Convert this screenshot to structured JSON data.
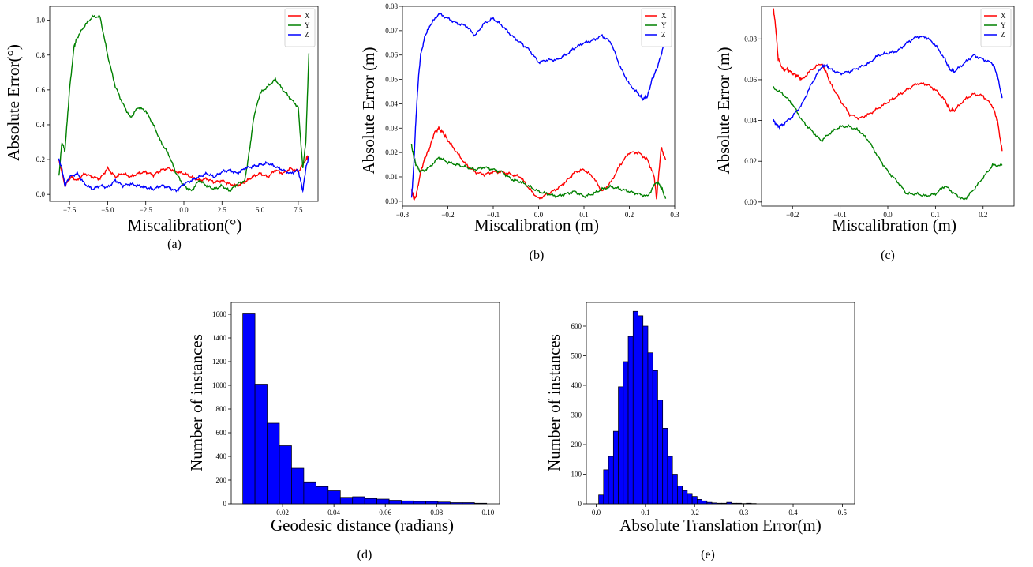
{
  "chart_data": [
    {
      "id": "a",
      "type": "line",
      "caption": "(a)",
      "xlabel": "Miscalibration(°)",
      "ylabel": "Absolute Error(°)",
      "xlim": [
        -8.8,
        8.8
      ],
      "ylim": [
        -0.04,
        1.08
      ],
      "xticks": [
        -7.5,
        -5.0,
        -2.5,
        0.0,
        2.5,
        5.0,
        7.5
      ],
      "xtick_labels": [
        "−7.5",
        "−5.0",
        "−2.5",
        "0.0",
        "2.5",
        "5.0",
        "7.5"
      ],
      "yticks": [
        0.0,
        0.2,
        0.4,
        0.6,
        0.8,
        1.0
      ],
      "ytick_labels": [
        "0.0",
        "0.2",
        "0.4",
        "0.6",
        "0.8",
        "1.0"
      ],
      "legend_position": "top-right",
      "series": [
        {
          "name": "X",
          "color": "#ff0000",
          "x": [
            -8.2,
            -7.8,
            -7.4,
            -7.0,
            -6.5,
            -6.0,
            -5.5,
            -5.0,
            -4.5,
            -4.0,
            -3.5,
            -3.0,
            -2.5,
            -2.0,
            -1.5,
            -1.0,
            -0.5,
            0.0,
            0.5,
            1.0,
            1.5,
            2.0,
            2.5,
            3.0,
            3.5,
            4.0,
            4.5,
            5.0,
            5.5,
            6.0,
            6.5,
            7.0,
            7.5,
            8.0,
            8.2
          ],
          "y": [
            0.2,
            0.05,
            0.1,
            0.08,
            0.12,
            0.1,
            0.09,
            0.15,
            0.1,
            0.12,
            0.1,
            0.12,
            0.13,
            0.11,
            0.14,
            0.15,
            0.13,
            0.12,
            0.1,
            0.08,
            0.09,
            0.07,
            0.08,
            0.06,
            0.05,
            0.07,
            0.1,
            0.12,
            0.1,
            0.14,
            0.12,
            0.15,
            0.13,
            0.2,
            0.22
          ]
        },
        {
          "name": "Y",
          "color": "#008000",
          "x": [
            -8.2,
            -8.0,
            -7.8,
            -7.5,
            -7.2,
            -7.0,
            -6.5,
            -6.0,
            -5.5,
            -5.0,
            -4.5,
            -4.0,
            -3.5,
            -3.0,
            -2.5,
            -2.0,
            -1.5,
            -1.0,
            -0.5,
            0.0,
            0.5,
            1.0,
            1.5,
            2.0,
            2.5,
            3.0,
            3.5,
            4.0,
            4.3,
            4.6,
            5.0,
            5.5,
            6.0,
            6.5,
            7.0,
            7.5,
            7.8,
            8.0,
            8.2
          ],
          "y": [
            0.1,
            0.3,
            0.25,
            0.6,
            0.85,
            0.9,
            0.97,
            1.02,
            1.02,
            0.8,
            0.62,
            0.52,
            0.44,
            0.5,
            0.48,
            0.4,
            0.3,
            0.23,
            0.12,
            0.05,
            0.02,
            0.08,
            0.05,
            0.03,
            0.05,
            0.02,
            0.06,
            0.08,
            0.25,
            0.45,
            0.58,
            0.62,
            0.66,
            0.6,
            0.55,
            0.5,
            0.15,
            0.3,
            0.81
          ]
        },
        {
          "name": "Z",
          "color": "#0000ff",
          "x": [
            -8.2,
            -8.0,
            -7.8,
            -7.5,
            -7.0,
            -6.5,
            -6.0,
            -5.5,
            -5.0,
            -4.5,
            -4.0,
            -3.5,
            -3.0,
            -2.5,
            -2.0,
            -1.5,
            -1.0,
            -0.5,
            0.0,
            0.5,
            1.0,
            1.5,
            2.0,
            2.5,
            3.0,
            3.5,
            4.0,
            4.5,
            5.0,
            5.5,
            6.0,
            6.5,
            7.0,
            7.5,
            7.8,
            8.0,
            8.2
          ],
          "y": [
            0.2,
            0.15,
            0.05,
            0.1,
            0.12,
            0.06,
            0.03,
            0.05,
            0.04,
            0.08,
            0.05,
            0.06,
            0.05,
            0.04,
            0.03,
            0.05,
            0.04,
            0.02,
            0.06,
            0.08,
            0.1,
            0.12,
            0.1,
            0.13,
            0.14,
            0.12,
            0.15,
            0.16,
            0.17,
            0.18,
            0.16,
            0.14,
            0.12,
            0.14,
            0.02,
            0.15,
            0.22
          ]
        }
      ]
    },
    {
      "id": "b",
      "type": "line",
      "caption": "(b)",
      "xlabel": "Miscalibration (m)",
      "ylabel": "Absolute Error (m)",
      "xlim": [
        -0.3,
        0.3
      ],
      "ylim": [
        -0.002,
        0.08
      ],
      "xticks": [
        -0.3,
        -0.2,
        -0.1,
        0.0,
        0.1,
        0.2,
        0.3
      ],
      "xtick_labels": [
        "−0.3",
        "−0.2",
        "−0.1",
        "0.0",
        "0.1",
        "0.2",
        "0.3"
      ],
      "yticks": [
        0.0,
        0.01,
        0.02,
        0.03,
        0.04,
        0.05,
        0.06,
        0.07,
        0.08
      ],
      "ytick_labels": [
        "0.00",
        "0.01",
        "0.02",
        "0.03",
        "0.04",
        "0.05",
        "0.06",
        "0.07",
        "0.08"
      ],
      "legend_position": "top-right",
      "series": [
        {
          "name": "X",
          "color": "#ff0000",
          "x": [
            -0.28,
            -0.275,
            -0.27,
            -0.26,
            -0.25,
            -0.24,
            -0.23,
            -0.22,
            -0.21,
            -0.2,
            -0.18,
            -0.16,
            -0.14,
            -0.12,
            -0.1,
            -0.08,
            -0.06,
            -0.04,
            -0.02,
            0.0,
            0.02,
            0.04,
            0.06,
            0.08,
            0.1,
            0.12,
            0.14,
            0.16,
            0.18,
            0.2,
            0.22,
            0.24,
            0.255,
            0.26,
            0.27,
            0.28
          ],
          "y": [
            0.005,
            0.001,
            0.002,
            0.012,
            0.018,
            0.022,
            0.028,
            0.03,
            0.028,
            0.025,
            0.02,
            0.015,
            0.012,
            0.011,
            0.012,
            0.012,
            0.011,
            0.01,
            0.005,
            0.001,
            0.003,
            0.005,
            0.008,
            0.012,
            0.013,
            0.01,
            0.004,
            0.008,
            0.015,
            0.02,
            0.02,
            0.017,
            0.01,
            0.001,
            0.022,
            0.017
          ]
        },
        {
          "name": "Y",
          "color": "#008000",
          "x": [
            -0.28,
            -0.275,
            -0.27,
            -0.26,
            -0.24,
            -0.22,
            -0.2,
            -0.18,
            -0.16,
            -0.14,
            -0.12,
            -0.1,
            -0.08,
            -0.06,
            -0.04,
            -0.02,
            0.0,
            0.02,
            0.04,
            0.06,
            0.08,
            0.1,
            0.12,
            0.14,
            0.16,
            0.18,
            0.2,
            0.22,
            0.24,
            0.26,
            0.27,
            0.28
          ],
          "y": [
            0.023,
            0.018,
            0.015,
            0.012,
            0.014,
            0.018,
            0.016,
            0.015,
            0.014,
            0.013,
            0.014,
            0.013,
            0.012,
            0.009,
            0.008,
            0.006,
            0.004,
            0.003,
            0.002,
            0.003,
            0.004,
            0.002,
            0.003,
            0.005,
            0.006,
            0.005,
            0.004,
            0.003,
            0.002,
            0.008,
            0.006,
            0.001
          ]
        },
        {
          "name": "Z",
          "color": "#0000ff",
          "x": [
            -0.28,
            -0.275,
            -0.27,
            -0.265,
            -0.26,
            -0.25,
            -0.24,
            -0.22,
            -0.2,
            -0.18,
            -0.16,
            -0.14,
            -0.12,
            -0.1,
            -0.08,
            -0.06,
            -0.04,
            -0.02,
            0.0,
            0.02,
            0.04,
            0.06,
            0.08,
            0.1,
            0.12,
            0.14,
            0.16,
            0.18,
            0.2,
            0.22,
            0.23,
            0.24,
            0.25,
            0.26,
            0.27,
            0.28
          ],
          "y": [
            0.001,
            0.015,
            0.035,
            0.05,
            0.06,
            0.068,
            0.072,
            0.077,
            0.075,
            0.073,
            0.072,
            0.068,
            0.073,
            0.075,
            0.072,
            0.068,
            0.065,
            0.062,
            0.057,
            0.058,
            0.058,
            0.06,
            0.063,
            0.065,
            0.066,
            0.068,
            0.065,
            0.055,
            0.048,
            0.044,
            0.042,
            0.043,
            0.05,
            0.054,
            0.06,
            0.067
          ]
        }
      ]
    },
    {
      "id": "c",
      "type": "line",
      "caption": "(c)",
      "xlabel": "Miscalibration (m)",
      "ylabel": "Absolute Error (m)",
      "xlim": [
        -0.265,
        0.265
      ],
      "ylim": [
        -0.002,
        0.096
      ],
      "xticks": [
        -0.2,
        -0.1,
        0.0,
        0.1,
        0.2
      ],
      "xtick_labels": [
        "−0.2",
        "−0.1",
        "0.0",
        "0.1",
        "0.2"
      ],
      "yticks": [
        0.0,
        0.02,
        0.04,
        0.06,
        0.08
      ],
      "ytick_labels": [
        "0.00",
        "0.02",
        "0.04",
        "0.06",
        "0.08"
      ],
      "legend_position": "top-right",
      "series": [
        {
          "name": "X",
          "color": "#ff0000",
          "x": [
            -0.24,
            -0.235,
            -0.23,
            -0.22,
            -0.21,
            -0.2,
            -0.19,
            -0.18,
            -0.16,
            -0.14,
            -0.13,
            -0.12,
            -0.1,
            -0.08,
            -0.06,
            -0.04,
            -0.02,
            0.0,
            0.02,
            0.04,
            0.06,
            0.08,
            0.1,
            0.12,
            0.13,
            0.14,
            0.16,
            0.18,
            0.2,
            0.22,
            0.23,
            0.24
          ],
          "y": [
            0.095,
            0.085,
            0.07,
            0.065,
            0.065,
            0.063,
            0.062,
            0.06,
            0.065,
            0.068,
            0.064,
            0.058,
            0.05,
            0.043,
            0.041,
            0.043,
            0.046,
            0.049,
            0.052,
            0.055,
            0.058,
            0.058,
            0.055,
            0.05,
            0.045,
            0.045,
            0.05,
            0.053,
            0.052,
            0.047,
            0.04,
            0.025
          ]
        },
        {
          "name": "Y",
          "color": "#008000",
          "x": [
            -0.24,
            -0.22,
            -0.2,
            -0.18,
            -0.16,
            -0.14,
            -0.12,
            -0.1,
            -0.08,
            -0.06,
            -0.04,
            -0.02,
            0.0,
            0.02,
            0.04,
            0.06,
            0.08,
            0.1,
            0.12,
            0.14,
            0.16,
            0.18,
            0.2,
            0.22,
            0.24
          ],
          "y": [
            0.056,
            0.053,
            0.048,
            0.04,
            0.035,
            0.03,
            0.034,
            0.037,
            0.037,
            0.035,
            0.03,
            0.022,
            0.015,
            0.01,
            0.004,
            0.004,
            0.003,
            0.004,
            0.008,
            0.004,
            0.001,
            0.006,
            0.012,
            0.018,
            0.018
          ]
        },
        {
          "name": "Z",
          "color": "#0000ff",
          "x": [
            -0.24,
            -0.23,
            -0.22,
            -0.2,
            -0.18,
            -0.16,
            -0.14,
            -0.13,
            -0.12,
            -0.1,
            -0.08,
            -0.06,
            -0.04,
            -0.02,
            0.0,
            0.02,
            0.04,
            0.06,
            0.08,
            0.1,
            0.12,
            0.13,
            0.14,
            0.16,
            0.18,
            0.2,
            0.22,
            0.23,
            0.24
          ],
          "y": [
            0.04,
            0.037,
            0.038,
            0.042,
            0.048,
            0.058,
            0.066,
            0.067,
            0.065,
            0.063,
            0.064,
            0.066,
            0.068,
            0.072,
            0.073,
            0.074,
            0.078,
            0.081,
            0.081,
            0.077,
            0.07,
            0.065,
            0.064,
            0.068,
            0.072,
            0.07,
            0.068,
            0.062,
            0.051
          ]
        }
      ]
    },
    {
      "id": "d",
      "type": "bar",
      "subtype": "histogram",
      "caption": "(d)",
      "xlabel": "Geodesic distance (radians)",
      "ylabel": "Number of instances",
      "color": "#0000ff",
      "edge_color": "#000000",
      "xlim": [
        0.0,
        0.1045
      ],
      "ylim": [
        0,
        1700
      ],
      "xticks": [
        0.02,
        0.04,
        0.06,
        0.08,
        0.1
      ],
      "xtick_labels": [
        "0.02",
        "0.04",
        "0.06",
        "0.08",
        "0.10"
      ],
      "yticks": [
        0,
        200,
        400,
        600,
        800,
        1000,
        1200,
        1400,
        1600
      ],
      "ytick_labels": [
        "0",
        "200",
        "400",
        "600",
        "800",
        "1000",
        "1200",
        "1400",
        "1600"
      ],
      "bin_start": 0.0045,
      "bin_width": 0.00475,
      "values": [
        1610,
        1010,
        680,
        490,
        300,
        185,
        145,
        110,
        55,
        60,
        45,
        40,
        30,
        25,
        20,
        20,
        15,
        10,
        10,
        5
      ]
    },
    {
      "id": "e",
      "type": "bar",
      "subtype": "histogram",
      "caption": "(e)",
      "xlabel": "Absolute Translation Error(m)",
      "ylabel": "Number of instances",
      "color": "#0000ff",
      "edge_color": "#000000",
      "xlim": [
        -0.02,
        0.525
      ],
      "ylim": [
        0,
        680
      ],
      "xticks": [
        0.0,
        0.1,
        0.2,
        0.3,
        0.4,
        0.5
      ],
      "xtick_labels": [
        "0.0",
        "0.1",
        "0.2",
        "0.3",
        "0.4",
        "0.5"
      ],
      "yticks": [
        0,
        100,
        200,
        300,
        400,
        500,
        600
      ],
      "ytick_labels": [
        "0",
        "100",
        "200",
        "300",
        "400",
        "500",
        "600"
      ],
      "bin_start": 0.005,
      "bin_width": 0.01,
      "values": [
        30,
        115,
        160,
        245,
        395,
        480,
        565,
        650,
        635,
        600,
        510,
        450,
        350,
        255,
        160,
        100,
        60,
        45,
        35,
        25,
        15,
        10,
        5,
        3,
        2,
        2,
        5,
        2,
        2,
        1,
        2,
        1
      ]
    }
  ]
}
